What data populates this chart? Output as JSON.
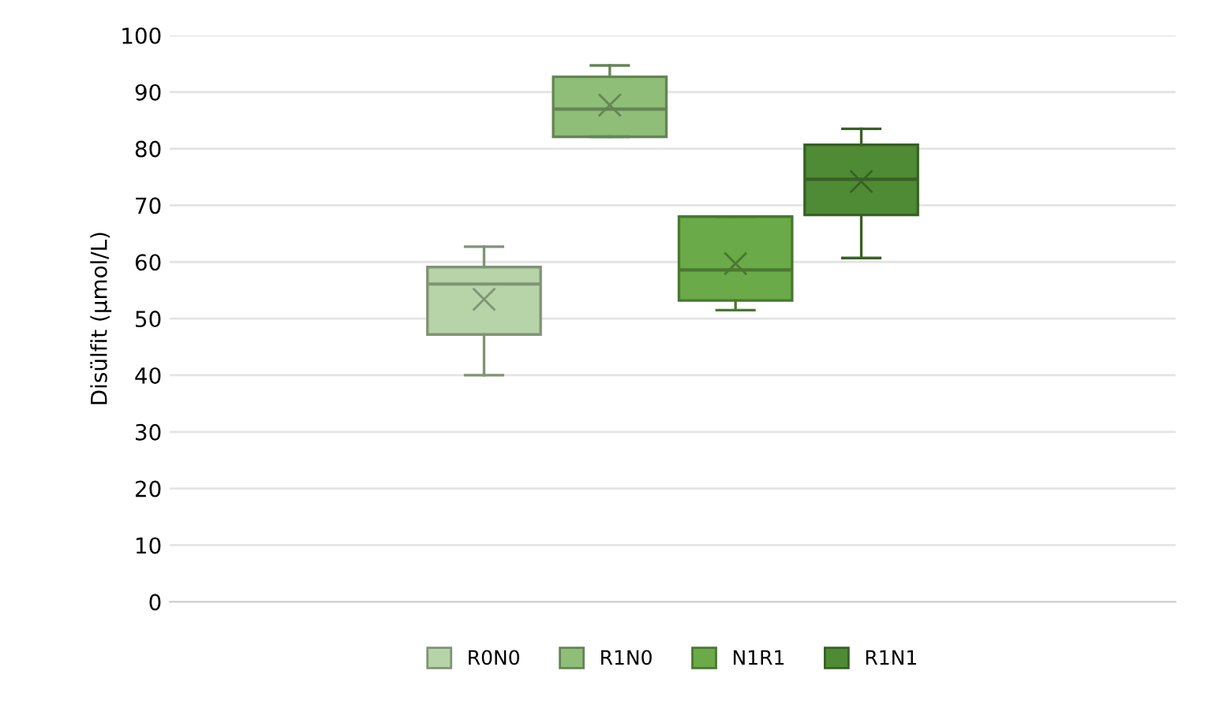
{
  "chart_data": {
    "type": "box",
    "ylabel": "Disülfit (µmol/L)",
    "categories": [
      null
    ],
    "ylim": [
      0,
      100
    ],
    "yticks": [
      0,
      10,
      20,
      30,
      40,
      50,
      60,
      70,
      80,
      90,
      100
    ],
    "grid": "y",
    "legend": "bottom",
    "tick_labels": "y",
    "series": [
      {
        "name": "R0N0",
        "color": "#b6d4a7",
        "boxes": [
          {
            "low": 40,
            "q1": 47.2,
            "median": 56.1,
            "q3": 59.1,
            "high": 62.7,
            "mean": 53.4
          }
        ]
      },
      {
        "name": "R1N0",
        "color": "#8fbe78",
        "boxes": [
          {
            "low": 82.1,
            "q1": 82.1,
            "median": 87,
            "q3": 92.7,
            "high": 94.7,
            "mean": 87.7
          }
        ]
      },
      {
        "name": "N1R1",
        "color": "#6aaa48",
        "boxes": [
          {
            "low": 51.5,
            "q1": 53.2,
            "median": 58.6,
            "q3": 68,
            "high": 68,
            "mean": 59.7
          }
        ]
      },
      {
        "name": "R1N1",
        "color": "#4f8a34",
        "boxes": [
          {
            "low": 60.7,
            "q1": 68.3,
            "median": 74.6,
            "q3": 80.7,
            "high": 83.5,
            "mean": 74.2
          }
        ]
      }
    ]
  }
}
